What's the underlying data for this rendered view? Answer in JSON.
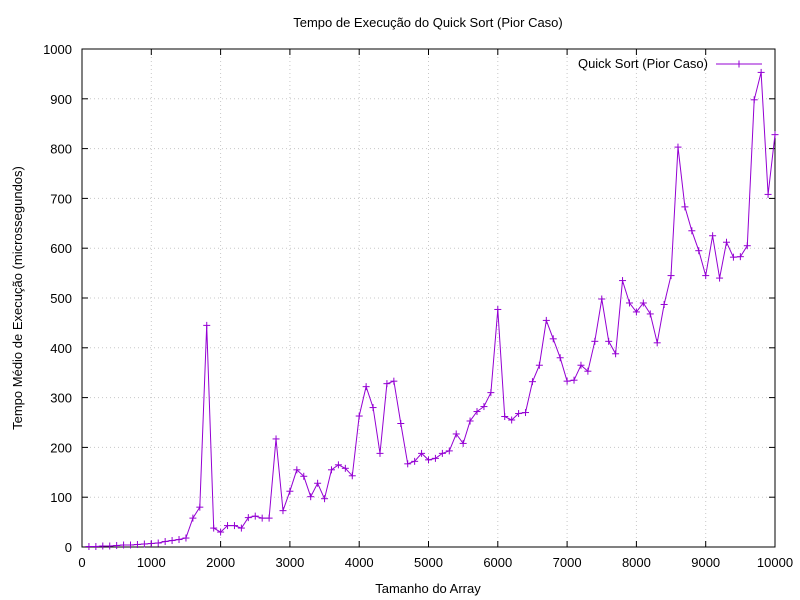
{
  "chart_data": {
    "type": "line",
    "title": "Tempo de Execução do Quick Sort (Pior Caso)",
    "xlabel": "Tamanho do Array",
    "ylabel": "Tempo Médio de Execução (microssegundos)",
    "xlim": [
      0,
      10000
    ],
    "ylim": [
      0,
      1000
    ],
    "xticks": [
      0,
      1000,
      2000,
      3000,
      4000,
      5000,
      6000,
      7000,
      8000,
      9000,
      10000
    ],
    "yticks": [
      0,
      100,
      200,
      300,
      400,
      500,
      600,
      700,
      800,
      900,
      1000
    ],
    "grid": true,
    "legend_position": "top-right",
    "series": [
      {
        "name": "Quick Sort (Pior Caso)",
        "color": "#9400d3",
        "marker": "plus",
        "x": [
          100,
          200,
          300,
          400,
          500,
          600,
          700,
          800,
          900,
          1000,
          1100,
          1200,
          1300,
          1400,
          1500,
          1600,
          1700,
          1800,
          1900,
          2000,
          2100,
          2200,
          2300,
          2400,
          2500,
          2600,
          2700,
          2800,
          2900,
          3000,
          3100,
          3200,
          3300,
          3400,
          3500,
          3600,
          3700,
          3800,
          3900,
          4000,
          4100,
          4200,
          4300,
          4400,
          4500,
          4600,
          4700,
          4800,
          4900,
          5000,
          5100,
          5200,
          5300,
          5400,
          5500,
          5600,
          5700,
          5800,
          5900,
          6000,
          6100,
          6200,
          6300,
          6400,
          6500,
          6600,
          6700,
          6800,
          6900,
          7000,
          7100,
          7200,
          7300,
          7400,
          7500,
          7600,
          7700,
          7800,
          7900,
          8000,
          8100,
          8200,
          8300,
          8400,
          8500,
          8600,
          8700,
          8800,
          8900,
          9000,
          9100,
          9200,
          9300,
          9400,
          9500,
          9600,
          9700,
          9800,
          9900,
          10000
        ],
        "y": [
          1,
          1,
          2,
          2,
          3,
          4,
          4,
          5,
          6,
          7,
          8,
          11,
          13,
          15,
          18,
          58,
          80,
          445,
          38,
          30,
          43,
          43,
          38,
          59,
          62,
          58,
          58,
          217,
          73,
          112,
          155,
          142,
          101,
          128,
          97,
          155,
          165,
          158,
          143,
          263,
          322,
          280,
          188,
          328,
          333,
          248,
          167,
          172,
          188,
          175,
          178,
          188,
          193,
          227,
          208,
          253,
          272,
          282,
          310,
          477,
          262,
          255,
          268,
          270,
          332,
          365,
          455,
          418,
          380,
          333,
          335,
          365,
          353,
          413,
          498,
          413,
          388,
          535,
          490,
          472,
          490,
          468,
          410,
          487,
          545,
          803,
          683,
          635,
          595,
          545,
          625,
          540,
          612,
          582,
          583,
          605,
          898,
          953,
          708,
          828
        ]
      }
    ]
  }
}
